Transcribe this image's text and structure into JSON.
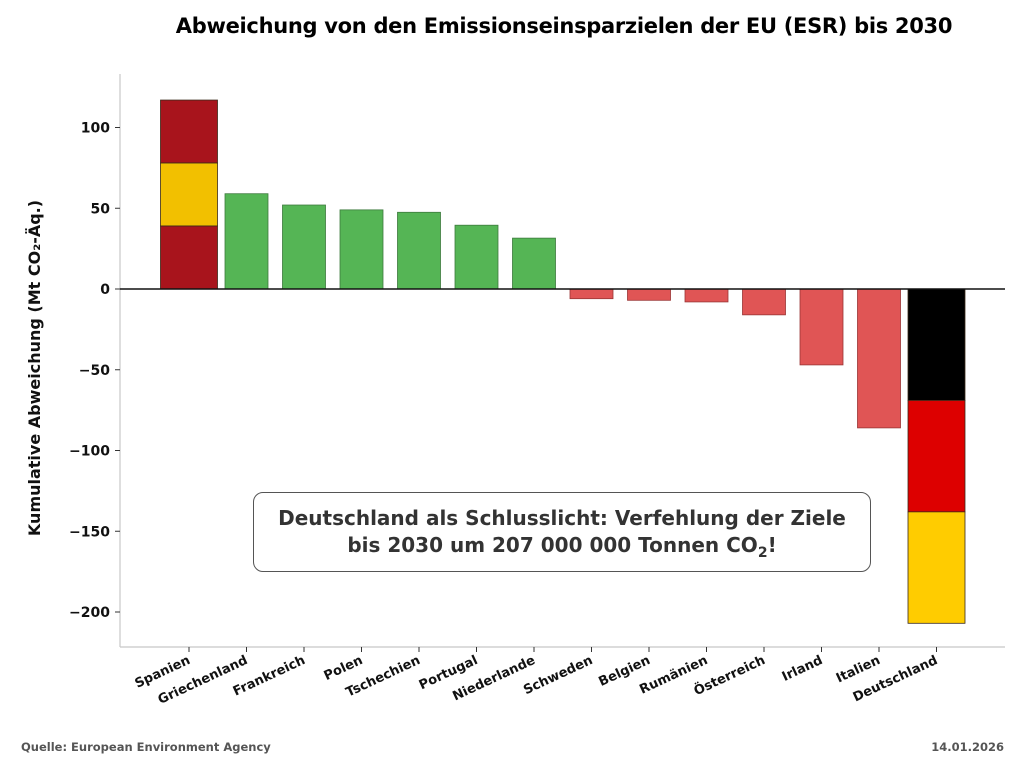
{
  "chart_data": {
    "type": "bar",
    "title": "Abweichung von den Emissionseinsparzielen der EU (ESR) bis 2030",
    "xlabel": "",
    "ylabel": "Kumulative Abweichung (Mt CO₂-Äq.)",
    "ylim": [
      -223,
      133
    ],
    "yticks": [
      100,
      50,
      0,
      -50,
      -100,
      -150,
      -200
    ],
    "ytick_labels": [
      "100",
      "50",
      "0",
      "−50",
      "−100",
      "−150",
      "−200"
    ],
    "grid": false,
    "categories": [
      "Spanien",
      "Griechenland",
      "Frankreich",
      "Polen",
      "Tschechien",
      "Portugal",
      "Niederlande",
      "Schweden",
      "Belgien",
      "Rumänien",
      "Österreich",
      "Irland",
      "Italien",
      "Deutschland"
    ],
    "values": [
      117,
      59,
      52,
      49,
      47.5,
      39.5,
      31.5,
      -6,
      -7,
      -8,
      -16,
      -47,
      -86,
      -207
    ],
    "colors": {
      "positive": "#55b555",
      "negative": "#e05555",
      "zero_line": "#111111"
    },
    "flag_bars": {
      "Spanien": [
        "#a8141c",
        "#f2c000",
        "#a8141c"
      ],
      "Deutschland": [
        "#000000",
        "#dd0000",
        "#ffcc00"
      ]
    },
    "annotation": {
      "line1": "Deutschland als Schlusslicht: Verfehlung der Ziele",
      "line2_pre": "bis 2030 um 207 000 000 Tonnen CO",
      "line2_sub": "2",
      "line2_post": "!"
    }
  },
  "footer": {
    "source": "Quelle: European Environment Agency",
    "date": "14.01.2026"
  }
}
